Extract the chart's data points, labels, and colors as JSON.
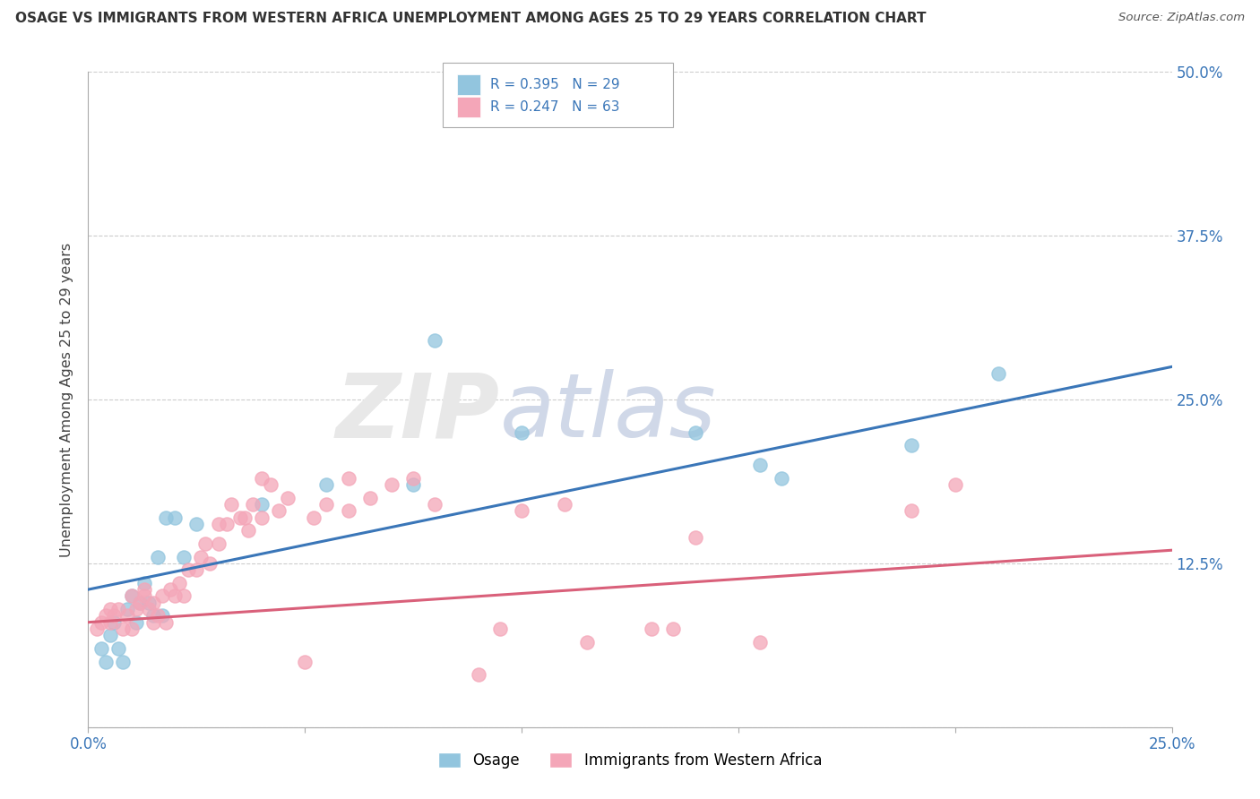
{
  "title": "OSAGE VS IMMIGRANTS FROM WESTERN AFRICA UNEMPLOYMENT AMONG AGES 25 TO 29 YEARS CORRELATION CHART",
  "source": "Source: ZipAtlas.com",
  "ylabel": "Unemployment Among Ages 25 to 29 years",
  "xlim": [
    0.0,
    0.25
  ],
  "ylim": [
    0.0,
    0.5
  ],
  "xtick_positions": [
    0.0,
    0.05,
    0.1,
    0.15,
    0.2,
    0.25
  ],
  "xtick_labels": [
    "0.0%",
    "",
    "",
    "",
    "",
    "25.0%"
  ],
  "ytick_positions": [
    0.0,
    0.125,
    0.25,
    0.375,
    0.5
  ],
  "ytick_labels": [
    "",
    "12.5%",
    "25.0%",
    "37.5%",
    "50.0%"
  ],
  "legend_r1": "R = 0.395",
  "legend_n1": "N = 29",
  "legend_r2": "R = 0.247",
  "legend_n2": "N = 63",
  "color_osage": "#92c5de",
  "color_africa": "#f4a6b8",
  "color_line_osage": "#3a76b8",
  "color_line_africa": "#d9607a",
  "osage_line_x0": 0.0,
  "osage_line_y0": 0.105,
  "osage_line_x1": 0.25,
  "osage_line_y1": 0.275,
  "africa_line_x0": 0.0,
  "africa_line_y0": 0.08,
  "africa_line_x1": 0.25,
  "africa_line_y1": 0.135,
  "osage_x": [
    0.003,
    0.004,
    0.005,
    0.006,
    0.007,
    0.008,
    0.009,
    0.01,
    0.011,
    0.012,
    0.013,
    0.014,
    0.015,
    0.016,
    0.017,
    0.018,
    0.02,
    0.022,
    0.025,
    0.04,
    0.055,
    0.075,
    0.08,
    0.1,
    0.14,
    0.155,
    0.16,
    0.19,
    0.21
  ],
  "osage_y": [
    0.06,
    0.05,
    0.07,
    0.08,
    0.06,
    0.05,
    0.09,
    0.1,
    0.08,
    0.095,
    0.11,
    0.095,
    0.085,
    0.13,
    0.085,
    0.16,
    0.16,
    0.13,
    0.155,
    0.17,
    0.185,
    0.185,
    0.295,
    0.225,
    0.225,
    0.2,
    0.19,
    0.215,
    0.27
  ],
  "africa_x": [
    0.002,
    0.003,
    0.004,
    0.005,
    0.005,
    0.006,
    0.007,
    0.008,
    0.009,
    0.01,
    0.01,
    0.011,
    0.012,
    0.013,
    0.013,
    0.014,
    0.015,
    0.015,
    0.016,
    0.017,
    0.018,
    0.019,
    0.02,
    0.021,
    0.022,
    0.023,
    0.025,
    0.026,
    0.027,
    0.028,
    0.03,
    0.03,
    0.032,
    0.033,
    0.035,
    0.036,
    0.037,
    0.038,
    0.04,
    0.04,
    0.042,
    0.044,
    0.046,
    0.05,
    0.052,
    0.055,
    0.06,
    0.06,
    0.065,
    0.07,
    0.075,
    0.08,
    0.09,
    0.095,
    0.1,
    0.11,
    0.115,
    0.13,
    0.135,
    0.14,
    0.155,
    0.19,
    0.2
  ],
  "africa_y": [
    0.075,
    0.08,
    0.085,
    0.08,
    0.09,
    0.085,
    0.09,
    0.075,
    0.085,
    0.075,
    0.1,
    0.09,
    0.095,
    0.1,
    0.105,
    0.09,
    0.08,
    0.095,
    0.085,
    0.1,
    0.08,
    0.105,
    0.1,
    0.11,
    0.1,
    0.12,
    0.12,
    0.13,
    0.14,
    0.125,
    0.14,
    0.155,
    0.155,
    0.17,
    0.16,
    0.16,
    0.15,
    0.17,
    0.19,
    0.16,
    0.185,
    0.165,
    0.175,
    0.05,
    0.16,
    0.17,
    0.19,
    0.165,
    0.175,
    0.185,
    0.19,
    0.17,
    0.04,
    0.075,
    0.165,
    0.17,
    0.065,
    0.075,
    0.075,
    0.145,
    0.065,
    0.165,
    0.185
  ]
}
